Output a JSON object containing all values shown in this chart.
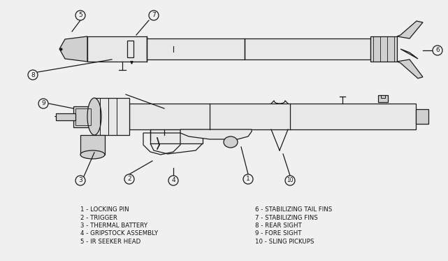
{
  "bg_color": "#f0f0f0",
  "line_color": "#1a1a1a",
  "label_color": "#111111",
  "legend_left": [
    "1 - LOCKING PIN",
    "2 - TRIGGER",
    "3 - THERMAL BATTERY",
    "4 - GRIPSTOCK ASSEMBLY",
    "5 - IR SEEKER HEAD"
  ],
  "legend_right": [
    "6 - STABILIZING TAIL FINS",
    "7 - STABILIZING FINS",
    "8 - REAR SIGHT",
    "9 - FORE SIGHT",
    "10 - SLING PICKUPS"
  ],
  "fig_width": 6.41,
  "fig_height": 3.73,
  "dpi": 100
}
